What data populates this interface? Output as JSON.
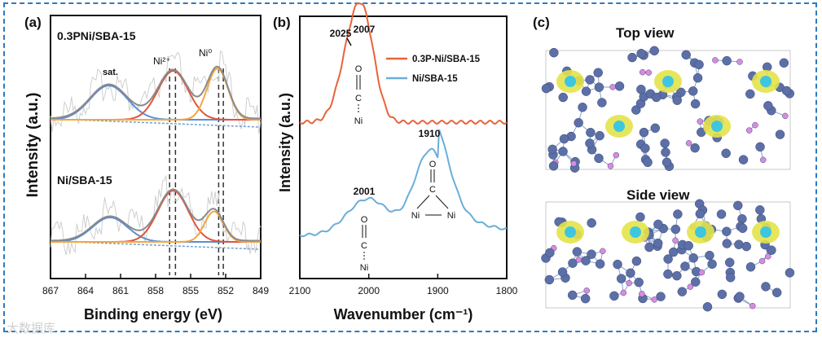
{
  "panels": {
    "a": {
      "label": "(a)"
    },
    "b": {
      "label": "(b)"
    },
    "c": {
      "label": "(c)",
      "top_title": "Top view",
      "side_title": "Side view"
    }
  },
  "watermark": "大数据库",
  "chart_data": [
    {
      "type": "line",
      "panel": "a",
      "xlabel": "Binding energy (eV)",
      "ylabel": "Intensity (a.u.)",
      "xlim": [
        867,
        849
      ],
      "x_ticks": [
        867,
        864,
        861,
        858,
        855,
        852,
        849
      ],
      "samples": [
        "0.3PNi/SBA-15",
        "Ni/SBA-15"
      ],
      "annotations": [
        "sat.",
        "Ni²⁺",
        "Ni⁰"
      ],
      "peak_colors": {
        "sat.": "#5b8fd0",
        "Ni2+": "#e0553a",
        "Ni0": "#f2a83c",
        "envelope": "#8a8a8a",
        "raw": "#cfcfcf"
      },
      "reference_lines": [
        856.8,
        856.3,
        852.6,
        852.2
      ],
      "series": [
        {
          "name": "0.3PNi/SBA-15",
          "peaks": [
            {
              "component": "sat.",
              "center": 862.0,
              "height": 0.28,
              "width": 1.6
            },
            {
              "component": "Ni2+",
              "center": 856.5,
              "height": 0.4,
              "width": 1.3
            },
            {
              "component": "Ni0",
              "center": 852.7,
              "height": 0.42,
              "width": 0.9
            }
          ]
        },
        {
          "name": "Ni/SBA-15",
          "peaks": [
            {
              "component": "sat.",
              "center": 861.9,
              "height": 0.2,
              "width": 1.5
            },
            {
              "component": "Ni2+",
              "center": 856.5,
              "height": 0.42,
              "width": 1.3
            },
            {
              "component": "Ni0",
              "center": 853.0,
              "height": 0.25,
              "width": 0.8
            }
          ]
        }
      ]
    },
    {
      "type": "line",
      "panel": "b",
      "xlabel": "Wavenumber (cm⁻¹)",
      "ylabel": "Intensity (a.u.)",
      "xlim": [
        2100,
        1800
      ],
      "x_ticks": [
        2100,
        2000,
        1900,
        1800
      ],
      "series": [
        {
          "name": "0.3P-Ni/SBA-15",
          "color": "#e8633a",
          "peaks": [
            2025,
            2007
          ]
        },
        {
          "name": "Ni/SBA-15",
          "color": "#6aaed8",
          "peaks": [
            2001,
            1910
          ]
        }
      ],
      "annotations": [
        "2025",
        "2007",
        "2001",
        "1910"
      ],
      "structures": {
        "linear": {
          "o": "O",
          "c": "C",
          "ni": "Ni"
        },
        "bridged": {
          "o": "O",
          "c": "C",
          "ni1": "Ni",
          "ni2": "Ni"
        }
      }
    }
  ]
}
